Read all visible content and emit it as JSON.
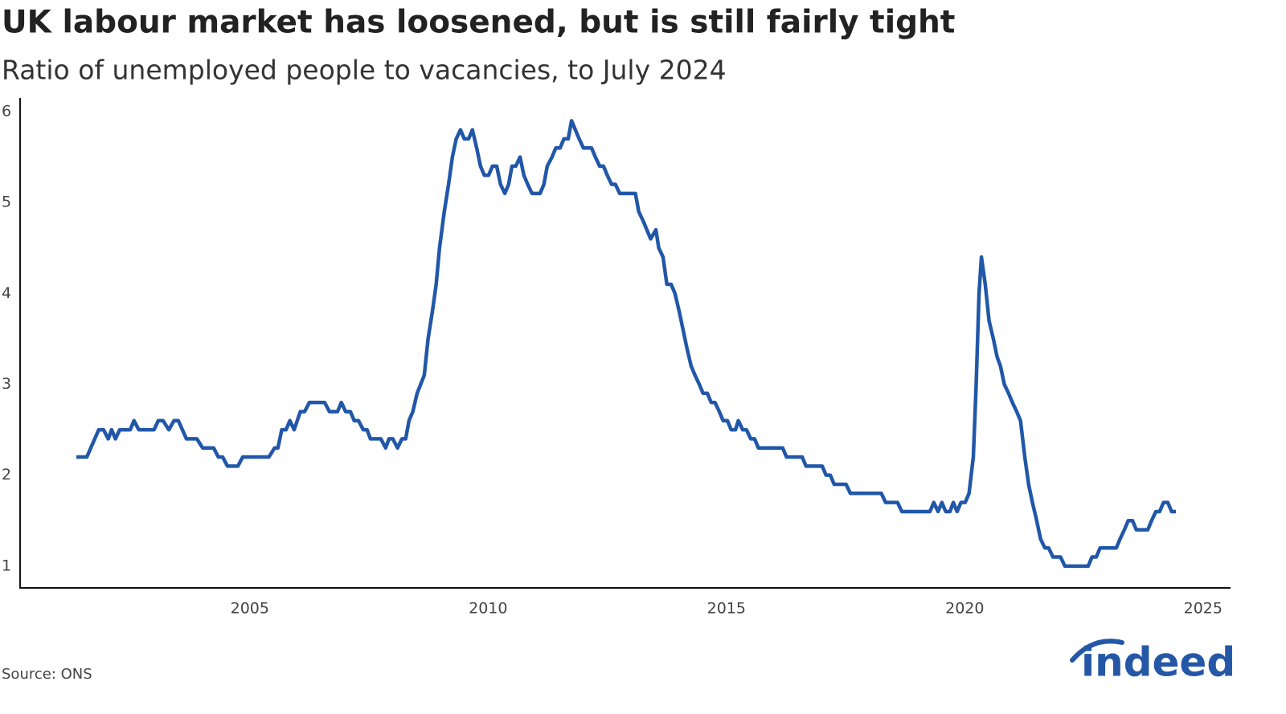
{
  "chart_data": {
    "type": "line",
    "title": "UK labour market has loosened, but is still fairly tight",
    "subtitle": "Ratio of unemployed people to vacancies, to July 2024",
    "source": "Source: ONS",
    "logo": "indeed",
    "xlim": [
      2000.18,
      2025.56
    ],
    "xticks": [
      2005,
      2010,
      2015,
      2020,
      2025
    ],
    "ylim": [
      0.76,
      6.15
    ],
    "yticks": [
      1,
      2,
      3,
      4,
      5,
      6
    ],
    "grid": false,
    "x": [
      2001.36,
      2001.58,
      2001.83,
      2001.93,
      2002.03,
      2002.1,
      2002.18,
      2002.27,
      2002.49,
      2002.57,
      2002.67,
      2002.99,
      2003.08,
      2003.18,
      2003.3,
      2003.41,
      2003.5,
      2003.67,
      2003.89,
      2004.01,
      2004.24,
      2004.34,
      2004.43,
      2004.53,
      2004.75,
      2004.85,
      2005.4,
      2005.52,
      2005.59,
      2005.67,
      2005.76,
      2005.84,
      2005.93,
      2006.06,
      2006.15,
      2006.25,
      2006.57,
      2006.67,
      2006.84,
      2006.92,
      2007.01,
      2007.11,
      2007.19,
      2007.28,
      2007.38,
      2007.46,
      2007.53,
      2007.75,
      2007.85,
      2007.92,
      2008.0,
      2008.1,
      2008.19,
      2008.27,
      2008.34,
      2008.42,
      2008.51,
      2008.66,
      2008.74,
      2008.83,
      2008.91,
      2008.98,
      2009.08,
      2009.17,
      2009.25,
      2009.33,
      2009.42,
      2009.5,
      2009.59,
      2009.67,
      2009.76,
      2009.84,
      2009.92,
      2010.01,
      2010.09,
      2010.18,
      2010.26,
      2010.35,
      2010.43,
      2010.5,
      2010.58,
      2010.67,
      2010.75,
      2010.83,
      2010.92,
      2011.09,
      2011.17,
      2011.24,
      2011.34,
      2011.42,
      2011.51,
      2011.59,
      2011.68,
      2011.75,
      2011.83,
      2011.91,
      2012.0,
      2012.17,
      2012.25,
      2012.34,
      2012.42,
      2012.5,
      2012.59,
      2012.67,
      2012.76,
      2013.09,
      2013.16,
      2013.25,
      2013.41,
      2013.52,
      2013.58,
      2013.67,
      2013.75,
      2013.84,
      2013.92,
      2014.01,
      2014.09,
      2014.17,
      2014.26,
      2014.34,
      2014.43,
      2014.51,
      2014.6,
      2014.68,
      2014.76,
      2014.85,
      2014.93,
      2015.02,
      2015.1,
      2015.19,
      2015.25,
      2015.34,
      2015.42,
      2015.51,
      2015.59,
      2015.67,
      2016.18,
      2016.26,
      2016.59,
      2016.67,
      2017.01,
      2017.09,
      2017.18,
      2017.26,
      2017.51,
      2017.6,
      2018.25,
      2018.34,
      2018.59,
      2018.68,
      2019.27,
      2019.35,
      2019.44,
      2019.52,
      2019.6,
      2019.69,
      2019.76,
      2019.84,
      2019.92,
      2020.01,
      2020.09,
      2020.18,
      2020.24,
      2020.3,
      2020.35,
      2020.43,
      2020.51,
      2020.6,
      2020.68,
      2020.75,
      2020.83,
      2020.92,
      2021.0,
      2021.09,
      2021.17,
      2021.26,
      2021.34,
      2021.42,
      2021.51,
      2021.59,
      2021.68,
      2021.76,
      2021.85,
      2022.01,
      2022.1,
      2022.59,
      2022.67,
      2022.76,
      2022.84,
      2023.18,
      2023.26,
      2023.35,
      2023.43,
      2023.52,
      2023.6,
      2023.84,
      2023.92,
      2024.01,
      2024.09,
      2024.17,
      2024.26,
      2024.34,
      2024.43
    ],
    "series": [
      {
        "color": "#2157a8",
        "values": [
          2.2,
          2.2,
          2.5,
          2.5,
          2.4,
          2.5,
          2.4,
          2.5,
          2.5,
          2.6,
          2.5,
          2.5,
          2.6,
          2.6,
          2.5,
          2.6,
          2.6,
          2.4,
          2.4,
          2.3,
          2.3,
          2.2,
          2.2,
          2.1,
          2.1,
          2.2,
          2.2,
          2.3,
          2.3,
          2.5,
          2.5,
          2.6,
          2.5,
          2.7,
          2.7,
          2.8,
          2.8,
          2.7,
          2.7,
          2.8,
          2.7,
          2.7,
          2.6,
          2.6,
          2.5,
          2.5,
          2.4,
          2.4,
          2.3,
          2.4,
          2.4,
          2.3,
          2.4,
          2.4,
          2.6,
          2.7,
          2.9,
          3.1,
          3.5,
          3.8,
          4.1,
          4.5,
          4.9,
          5.2,
          5.5,
          5.7,
          5.8,
          5.7,
          5.7,
          5.8,
          5.6,
          5.4,
          5.3,
          5.3,
          5.4,
          5.4,
          5.2,
          5.1,
          5.2,
          5.4,
          5.4,
          5.5,
          5.3,
          5.2,
          5.1,
          5.1,
          5.2,
          5.4,
          5.5,
          5.6,
          5.6,
          5.7,
          5.7,
          5.9,
          5.8,
          5.7,
          5.6,
          5.6,
          5.5,
          5.4,
          5.4,
          5.3,
          5.2,
          5.2,
          5.1,
          5.1,
          4.9,
          4.8,
          4.6,
          4.7,
          4.5,
          4.4,
          4.1,
          4.1,
          4.0,
          3.8,
          3.6,
          3.4,
          3.2,
          3.1,
          3.0,
          2.9,
          2.9,
          2.8,
          2.8,
          2.7,
          2.6,
          2.6,
          2.5,
          2.5,
          2.6,
          2.5,
          2.5,
          2.4,
          2.4,
          2.3,
          2.3,
          2.2,
          2.2,
          2.1,
          2.1,
          2.0,
          2.0,
          1.9,
          1.9,
          1.8,
          1.8,
          1.7,
          1.7,
          1.6,
          1.6,
          1.7,
          1.6,
          1.7,
          1.6,
          1.6,
          1.7,
          1.6,
          1.7,
          1.7,
          1.8,
          2.2,
          3.0,
          4.0,
          4.4,
          4.1,
          3.7,
          3.5,
          3.3,
          3.2,
          3.0,
          2.9,
          2.8,
          2.7,
          2.6,
          2.2,
          1.9,
          1.7,
          1.5,
          1.3,
          1.2,
          1.2,
          1.1,
          1.1,
          1.0,
          1.0,
          1.1,
          1.1,
          1.2,
          1.2,
          1.3,
          1.4,
          1.5,
          1.5,
          1.4,
          1.4,
          1.5,
          1.6,
          1.6,
          1.7,
          1.7,
          1.6,
          1.6
        ]
      }
    ]
  }
}
